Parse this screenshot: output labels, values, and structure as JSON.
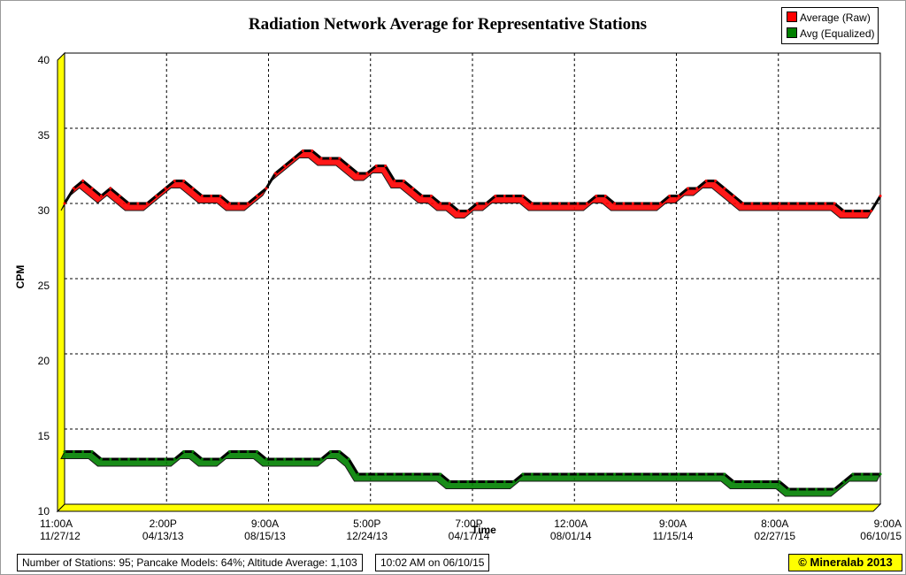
{
  "chart_data": {
    "type": "line",
    "title": "Radiation Network Average for Representative Stations",
    "xlabel": "Time",
    "ylabel": "CPM",
    "ylim": [
      10,
      40
    ],
    "yticks": [
      10,
      15,
      20,
      25,
      30,
      35,
      40
    ],
    "grid": true,
    "legend_position": "top-right",
    "x_ticks": [
      {
        "time": "11:00A",
        "date": "11/27/12"
      },
      {
        "time": "2:00P",
        "date": "04/13/13"
      },
      {
        "time": "9:00A",
        "date": "08/15/13"
      },
      {
        "time": "5:00P",
        "date": "12/24/13"
      },
      {
        "time": "7:00P",
        "date": "04/17/14"
      },
      {
        "time": "12:00A",
        "date": "08/01/14"
      },
      {
        "time": "9:00A",
        "date": "11/15/14"
      },
      {
        "time": "8:00A",
        "date": "02/27/15"
      },
      {
        "time": "9:00A",
        "date": "06/10/15"
      }
    ],
    "series": [
      {
        "name": "Average (Raw)",
        "color": "#ff0000",
        "values": [
          30,
          31,
          31.5,
          31,
          30.5,
          31,
          30.5,
          30,
          30,
          30,
          30.5,
          31,
          31.5,
          31.5,
          31,
          30.5,
          30.5,
          30.5,
          30,
          30,
          30,
          30.5,
          31,
          32,
          32.5,
          33,
          33.5,
          33.5,
          33,
          33,
          33,
          32.5,
          32,
          32,
          32.5,
          32.5,
          31.5,
          31.5,
          31,
          30.5,
          30.5,
          30,
          30,
          29.5,
          29.5,
          30,
          30,
          30.5,
          30.5,
          30.5,
          30.5,
          30,
          30,
          30,
          30,
          30,
          30,
          30,
          30.5,
          30.5,
          30,
          30,
          30,
          30,
          30,
          30,
          30.5,
          30.5,
          31,
          31,
          31.5,
          31.5,
          31,
          30.5,
          30,
          30,
          30,
          30,
          30,
          30,
          30,
          30,
          30,
          30,
          30,
          29.5,
          29.5,
          29.5,
          29.5,
          30.5
        ]
      },
      {
        "name": "Avg (Equalized)",
        "color": "#008000",
        "values": [
          13.5,
          13.5,
          13.5,
          13.5,
          13,
          13,
          13,
          13,
          13,
          13,
          13,
          13,
          13,
          13.5,
          13.5,
          13,
          13,
          13,
          13.5,
          13.5,
          13.5,
          13.5,
          13,
          13,
          13,
          13,
          13,
          13,
          13,
          13.5,
          13.5,
          13,
          12,
          12,
          12,
          12,
          12,
          12,
          12,
          12,
          12,
          12,
          11.5,
          11.5,
          11.5,
          11.5,
          11.5,
          11.5,
          11.5,
          11.5,
          12,
          12,
          12,
          12,
          12,
          12,
          12,
          12,
          12,
          12,
          12,
          12,
          12,
          12,
          12,
          12,
          12,
          12,
          12,
          12,
          12,
          12,
          12,
          11.5,
          11.5,
          11.5,
          11.5,
          11.5,
          11.5,
          11,
          11,
          11,
          11,
          11,
          11,
          11.5,
          12,
          12,
          12,
          12
        ]
      }
    ]
  },
  "footer": {
    "stations_info": "Number of Stations: 95; Pancake Models: 64%; Altitude Average: 1,103",
    "timestamp": "10:02 AM on 06/10/15",
    "copyright": "© Mineralab 2013"
  }
}
